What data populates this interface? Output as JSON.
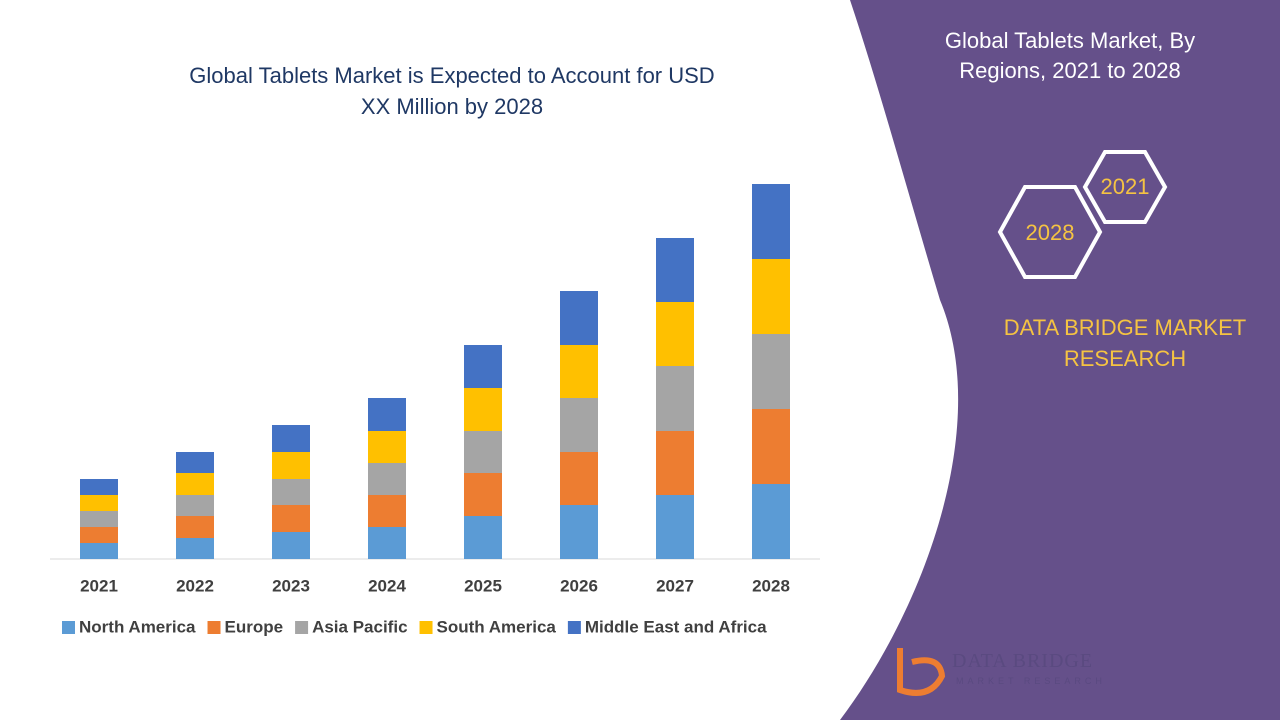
{
  "chart_data": {
    "type": "bar",
    "stacked": true,
    "title": "Global Tablets Market is Expected to Account for USD XX Million by 2028",
    "categories": [
      "2021",
      "2022",
      "2023",
      "2024",
      "2025",
      "2026",
      "2027",
      "2028"
    ],
    "series": [
      {
        "name": "North America",
        "color": "#5b9bd5",
        "values": [
          16,
          21,
          27,
          32,
          43,
          54,
          64,
          75
        ]
      },
      {
        "name": "Europe",
        "color": "#ed7d31",
        "values": [
          16,
          22,
          27,
          32,
          43,
          53,
          64,
          75
        ]
      },
      {
        "name": "Asia Pacific",
        "color": "#a5a5a5",
        "values": [
          16,
          21,
          26,
          32,
          42,
          54,
          65,
          75
        ]
      },
      {
        "name": "South America",
        "color": "#ffc000",
        "values": [
          16,
          22,
          27,
          32,
          43,
          53,
          64,
          75
        ]
      },
      {
        "name": "Middle East and Africa",
        "color": "#4472c4",
        "values": [
          16,
          21,
          27,
          33,
          43,
          54,
          64,
          75
        ]
      }
    ],
    "ylim": [
      0,
      400
    ]
  },
  "panel": {
    "title": "Global Tablets Market, By Regions, 2021 to 2028",
    "hex_labels": [
      "2021",
      "2028"
    ],
    "brand": "DATA BRIDGE MARKET RESEARCH",
    "logo": {
      "name": "DATA BRIDGE",
      "tagline": "MARKET RESEARCH"
    }
  }
}
